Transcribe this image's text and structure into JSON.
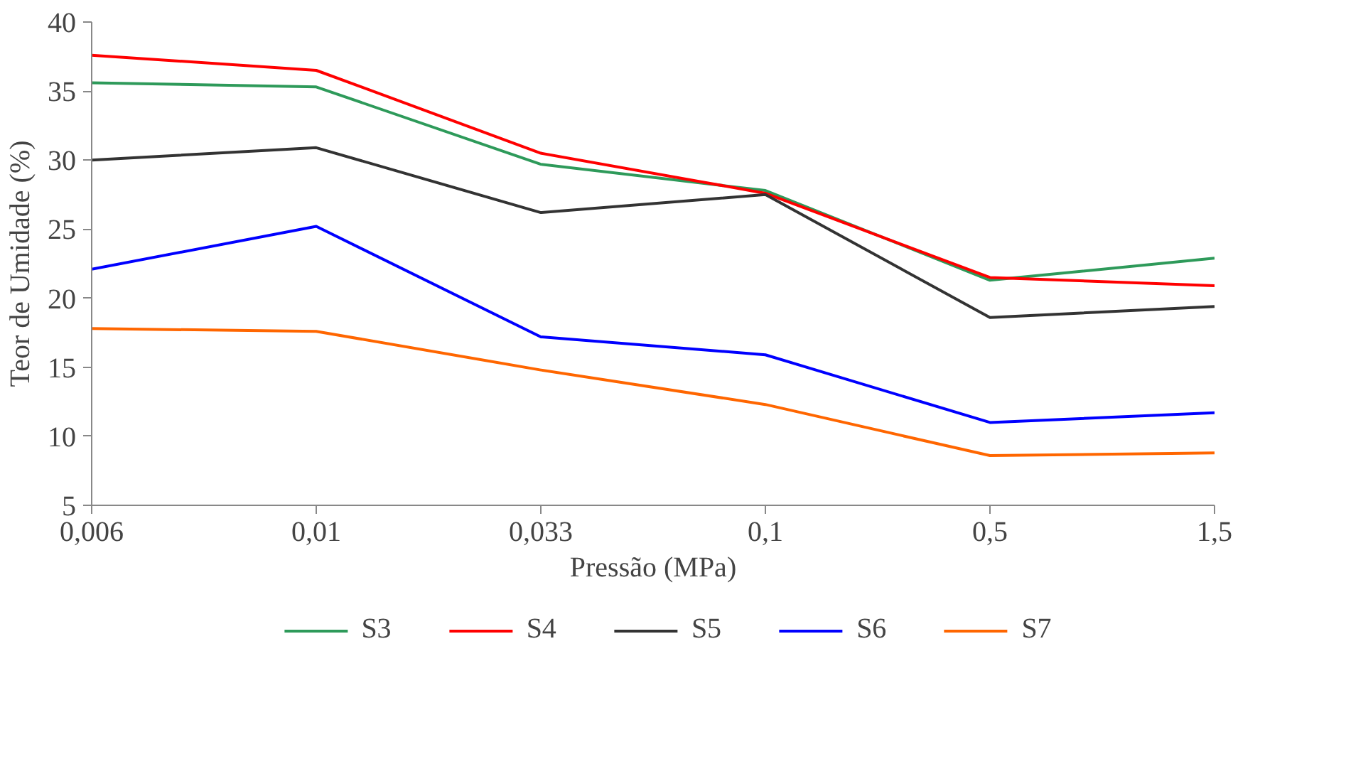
{
  "chart_data": {
    "type": "line",
    "xlabel": "Pressão (MPa)",
    "ylabel": "Teor de Umidade (%)",
    "categories": [
      "0,006",
      "0,01",
      "0,033",
      "0,1",
      "0,5",
      "1,5"
    ],
    "ylim": [
      5,
      40
    ],
    "yticks": [
      5,
      10,
      15,
      20,
      25,
      30,
      35,
      40
    ],
    "grid": false,
    "legend": "bottom",
    "line_style": "solid",
    "marker": "none",
    "series": [
      {
        "name": "S3",
        "color": "#2e9a5a",
        "values": [
          35.6,
          35.3,
          29.7,
          27.8,
          21.3,
          22.9
        ]
      },
      {
        "name": "S4",
        "color": "#ff0000",
        "values": [
          37.6,
          36.5,
          30.5,
          27.6,
          21.5,
          20.9
        ]
      },
      {
        "name": "S5",
        "color": "#333333",
        "values": [
          30.0,
          30.9,
          26.2,
          27.5,
          18.6,
          19.4
        ]
      },
      {
        "name": "S6",
        "color": "#0000ff",
        "values": [
          22.1,
          25.2,
          17.2,
          15.9,
          11.0,
          11.7
        ]
      },
      {
        "name": "S7",
        "color": "#ff6600",
        "values": [
          17.8,
          17.6,
          14.8,
          12.3,
          8.6,
          8.8
        ]
      }
    ]
  }
}
